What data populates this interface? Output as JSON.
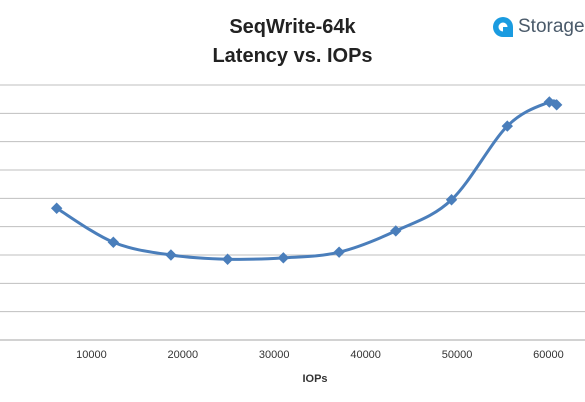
{
  "brand": {
    "text": "Storage",
    "icon": "storage-logo-icon",
    "color": "#1a9be0"
  },
  "chart_data": {
    "type": "line",
    "title": [
      "SeqWrite-64k",
      "Latency vs. IOPs"
    ],
    "xlabel": "IOPs",
    "ylabel": "",
    "xlim": [
      0,
      64000
    ],
    "xticks": [
      10000,
      20000,
      30000,
      40000,
      50000,
      60000
    ],
    "ylim": [
      0,
      9
    ],
    "y_gridlines": 9,
    "y_tick_labels_visible": false,
    "grid": "horizontal",
    "legend": "none",
    "series": [
      {
        "color": "#4a7ebb",
        "marker": "diamond",
        "smooth": true,
        "x": [
          6200,
          12400,
          18700,
          24900,
          31000,
          37100,
          43300,
          49400,
          55500,
          60100,
          60900
        ],
        "y": [
          4.65,
          3.45,
          3.0,
          2.85,
          2.9,
          3.1,
          3.85,
          4.95,
          7.55,
          8.4,
          8.3
        ]
      }
    ]
  }
}
